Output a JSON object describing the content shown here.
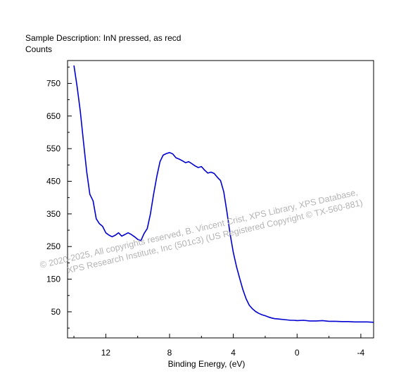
{
  "header": {
    "description": "Sample Description:  InN pressed, as recd",
    "y_label": "Counts"
  },
  "watermark": {
    "line1": "©  2020-2025,  All copyrights reserved,   B. Vincent Crist,  XPS Library, XPS Database,",
    "line2": "XPS Research Institute, Inc (501c3)   (US Registered Copyright © TX-560-881)"
  },
  "chart_data": {
    "type": "line",
    "title": "",
    "xlabel": "Binding Energy, (eV)",
    "ylabel": "Counts",
    "xlim": [
      14.4,
      -4.8
    ],
    "ylim": [
      -30,
      820
    ],
    "x_ticks": [
      12,
      8,
      4,
      0,
      -4
    ],
    "y_ticks": [
      50,
      150,
      250,
      350,
      450,
      550,
      650,
      750
    ],
    "grid": false,
    "line_color": "#0000d0",
    "series": [
      {
        "x": [
          14.0,
          13.8,
          13.6,
          13.4,
          13.2,
          13.0,
          12.8,
          12.6,
          12.4,
          12.2,
          12.0,
          11.8,
          11.6,
          11.4,
          11.2,
          11.0,
          10.8,
          10.6,
          10.4,
          10.2,
          10.0,
          9.8,
          9.6,
          9.4,
          9.2,
          9.0,
          8.8,
          8.6,
          8.4,
          8.2,
          8.0,
          7.8,
          7.6,
          7.4,
          7.2,
          7.0,
          6.8,
          6.6,
          6.4,
          6.2,
          6.0,
          5.8,
          5.6,
          5.4,
          5.2,
          5.0,
          4.8,
          4.6,
          4.4,
          4.2,
          4.0,
          3.8,
          3.6,
          3.4,
          3.2,
          3.0,
          2.8,
          2.6,
          2.4,
          2.2,
          2.0,
          1.8,
          1.6,
          1.4,
          1.2,
          1.0,
          0.8,
          0.6,
          0.4,
          0.2,
          0.0,
          -0.4,
          -0.8,
          -1.2,
          -1.6,
          -2.0,
          -2.4,
          -2.8,
          -3.2,
          -3.6,
          -4.0,
          -4.4,
          -4.8
        ],
        "values": [
          805,
          740,
          665,
          570,
          480,
          410,
          390,
          335,
          320,
          312,
          292,
          285,
          280,
          285,
          292,
          282,
          287,
          292,
          287,
          280,
          272,
          268,
          290,
          305,
          350,
          410,
          465,
          510,
          530,
          535,
          538,
          534,
          522,
          518,
          513,
          507,
          510,
          504,
          497,
          492,
          495,
          484,
          475,
          478,
          474,
          462,
          452,
          418,
          355,
          288,
          232,
          188,
          152,
          118,
          90,
          70,
          59,
          51,
          45,
          41,
          38,
          34,
          31,
          29,
          28,
          27,
          26,
          25,
          24,
          24,
          23,
          24,
          22,
          22,
          23,
          21,
          21,
          20,
          20,
          19,
          19,
          19,
          18
        ]
      }
    ]
  }
}
